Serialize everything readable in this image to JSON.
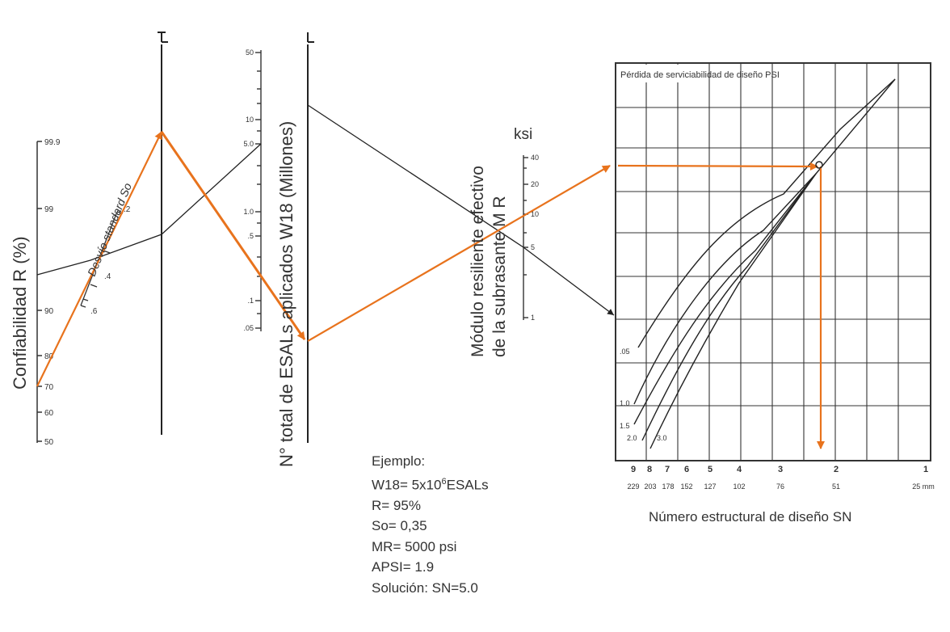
{
  "scales": {
    "reliability": {
      "title": "Confiabilidad R (%)",
      "ticks": [
        "99.9",
        "99",
        "90",
        "80",
        "70",
        "60",
        "50"
      ]
    },
    "std_dev": {
      "title": "Desvío standard So",
      "ticks": [
        ".2",
        ".4",
        ".6"
      ]
    },
    "esals": {
      "title": "N° total de ESALs aplicados W18 (Millones)",
      "ticks": [
        "50",
        "10",
        "5.0",
        "1.0",
        ".5",
        ".1",
        ".05"
      ]
    },
    "modulus": {
      "title_line1": "Módulo resiliente efectivo",
      "title_line2": "de la subrasante M R",
      "unit": "ksi",
      "ticks": [
        "40",
        "20",
        "10",
        "5",
        "1"
      ]
    },
    "pivot_mark": "T_L",
    "pivot_mark_2": "T_L"
  },
  "chart": {
    "title": "Pérdida de serviciabilidad de diseño PSI",
    "curve_labels": [
      ".05",
      "1.0",
      "1.5",
      "2.0",
      "3.0"
    ],
    "sn_ticks": [
      "9",
      "8",
      "7",
      "6",
      "5",
      "4",
      "3",
      "2",
      "1"
    ],
    "mm_ticks": [
      "229",
      "203",
      "178",
      "152",
      "127",
      "102",
      "76",
      "51",
      "25 mm"
    ],
    "xlabel": "Número estructural de diseño  SN"
  },
  "example": {
    "heading": "Ejemplo:",
    "w18_prefix": "W18=  5x10",
    "w18_exp": "6",
    "w18_suffix": "ESALs",
    "r": "R= 95%",
    "so": "So= 0,35",
    "mr": "MR= 5000 psi",
    "apsi": "APSI= 1.9",
    "solution": "Solución:  SN=5.0"
  },
  "colors": {
    "ink": "#222222",
    "solution_path": "#e8731d"
  }
}
